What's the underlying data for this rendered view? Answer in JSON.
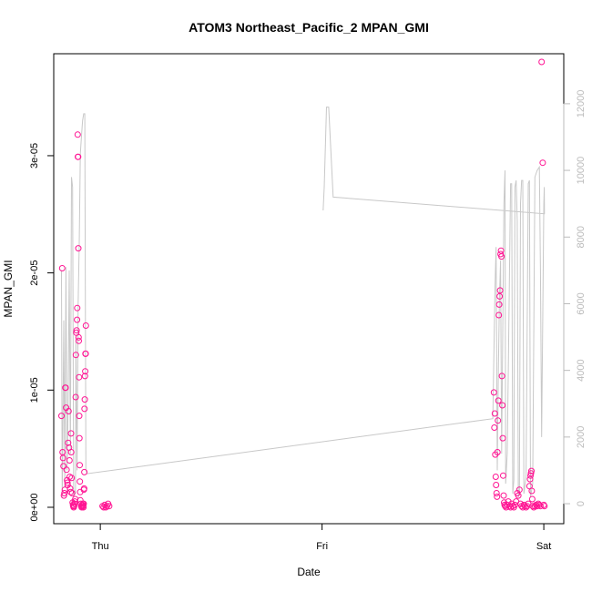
{
  "chart_data": {
    "type": "scatter",
    "title": "ATOM3 Northeast_Pacific_2 MPAN_GMI",
    "xlabel": "Date",
    "ylabel": "MPAN_GMI",
    "x_ticks": [
      "Thu",
      "Fri",
      "Sat"
    ],
    "x_tick_values": [
      0,
      1,
      2
    ],
    "xlim": [
      -0.21,
      2.09
    ],
    "ylim": [
      -1.4e-06,
      3.87e-05
    ],
    "y_ticks": [
      "0e+00",
      "1e-05",
      "2e-05",
      "3e-05"
    ],
    "y_tick_values": [
      0,
      1e-05,
      2e-05,
      3e-05
    ],
    "y2lim": [
      -600,
      13500
    ],
    "y2_ticks": [
      "0",
      "2000",
      "4000",
      "6000",
      "8000",
      "10000",
      "12000"
    ],
    "y2_tick_values": [
      0,
      2000,
      4000,
      6000,
      8000,
      10000,
      12000
    ],
    "colors": {
      "points": "#ff1493",
      "altitude": "#c8c8c8",
      "axis": "#000000",
      "right_axis": "#bbbbbb"
    },
    "series": [
      {
        "kind": "points",
        "points": [
          [
            -0.175,
            7.8e-06
          ],
          [
            -0.172,
            2.04e-05
          ],
          [
            -0.17,
            4.7e-06
          ],
          [
            -0.168,
            4.2e-06
          ],
          [
            -0.166,
            3.5e-06
          ],
          [
            -0.164,
            1e-06
          ],
          [
            -0.162,
            1.2e-06
          ],
          [
            -0.16,
            1.5e-06
          ],
          [
            -0.158,
            1.02e-05
          ],
          [
            -0.156,
            1.02e-05
          ],
          [
            -0.154,
            8.5e-06
          ],
          [
            -0.152,
            3.2e-06
          ],
          [
            -0.15,
            2.3e-06
          ],
          [
            -0.148,
            2.1e-06
          ],
          [
            -0.147,
            1.9e-06
          ],
          [
            -0.145,
            5.5e-06
          ],
          [
            -0.143,
            8.2e-06
          ],
          [
            -0.141,
            5.1e-06
          ],
          [
            -0.139,
            4e-06
          ],
          [
            -0.138,
            2.6e-06
          ],
          [
            -0.136,
            1.6e-06
          ],
          [
            -0.134,
            1.3e-06
          ],
          [
            -0.132,
            6.3e-06
          ],
          [
            -0.131,
            4.7e-06
          ],
          [
            -0.129,
            2.5e-06
          ],
          [
            -0.127,
            1.2e-06
          ],
          [
            -0.125,
            4e-07
          ],
          [
            -0.123,
            2e-07
          ],
          [
            -0.122,
            1e-07
          ],
          [
            -0.12,
            0.0
          ],
          [
            -0.118,
            1e-07
          ],
          [
            -0.116,
            3e-07
          ],
          [
            -0.115,
            5e-07
          ],
          [
            -0.113,
            7e-07
          ],
          [
            -0.111,
            9.4e-06
          ],
          [
            -0.11,
            1.3e-05
          ],
          [
            -0.108,
            1.49e-05
          ],
          [
            -0.107,
            1.51e-05
          ],
          [
            -0.105,
            1.6e-05
          ],
          [
            -0.104,
            1.7e-05
          ],
          [
            -0.102,
            3.18e-05
          ],
          [
            -0.101,
            2.99e-05
          ],
          [
            -0.1,
            2.99e-05
          ],
          [
            -0.099,
            2.21e-05
          ],
          [
            -0.098,
            1.45e-05
          ],
          [
            -0.097,
            1.42e-05
          ],
          [
            -0.096,
            1.11e-05
          ],
          [
            -0.095,
            7.8e-06
          ],
          [
            -0.094,
            5.9e-06
          ],
          [
            -0.093,
            3.6e-06
          ],
          [
            -0.092,
            2.2e-06
          ],
          [
            -0.091,
            1.3e-06
          ],
          [
            -0.09,
            6e-07
          ],
          [
            -0.088,
            3e-07
          ],
          [
            -0.086,
            1e-07
          ],
          [
            -0.084,
            0.0
          ],
          [
            -0.082,
            1e-07
          ],
          [
            -0.08,
            2e-07
          ],
          [
            -0.078,
            3e-07
          ],
          [
            -0.077,
            1e-07
          ],
          [
            -0.076,
            0.0
          ],
          [
            -0.075,
            3e-07
          ],
          [
            -0.074,
            1.5e-06
          ],
          [
            -0.073,
            1.6e-06
          ],
          [
            -0.072,
            3e-06
          ],
          [
            -0.071,
            8.4e-06
          ],
          [
            -0.07,
            9.2e-06
          ],
          [
            -0.069,
            1.12e-05
          ],
          [
            -0.068,
            1.16e-05
          ],
          [
            -0.067,
            1.31e-05
          ],
          [
            -0.066,
            1.31e-05
          ],
          [
            -0.065,
            1.55e-05
          ],
          [
            0.01,
            1e-07
          ],
          [
            0.015,
            0.0
          ],
          [
            0.02,
            2e-07
          ],
          [
            0.025,
            0.0
          ],
          [
            0.03,
            1e-07
          ],
          [
            0.035,
            3e-07
          ],
          [
            0.04,
            1e-07
          ],
          [
            1.775,
            9.8e-06
          ],
          [
            1.777,
            6.8e-06
          ],
          [
            1.779,
            8e-06
          ],
          [
            1.781,
            4.5e-06
          ],
          [
            1.783,
            2.6e-06
          ],
          [
            1.785,
            1.9e-06
          ],
          [
            1.787,
            1.2e-06
          ],
          [
            1.789,
            9e-07
          ],
          [
            1.791,
            4.7e-06
          ],
          [
            1.793,
            7.4e-06
          ],
          [
            1.795,
            9.1e-06
          ],
          [
            1.797,
            1.64e-05
          ],
          [
            1.799,
            1.73e-05
          ],
          [
            1.801,
            1.8e-05
          ],
          [
            1.803,
            1.85e-05
          ],
          [
            1.805,
            2.16e-05
          ],
          [
            1.807,
            2.19e-05
          ],
          [
            1.809,
            2.14e-05
          ],
          [
            1.811,
            1.12e-05
          ],
          [
            1.813,
            8.7e-06
          ],
          [
            1.815,
            5.9e-06
          ],
          [
            1.817,
            2.7e-06
          ],
          [
            1.819,
            1e-06
          ],
          [
            1.821,
            4e-07
          ],
          [
            1.823,
            2e-07
          ],
          [
            1.826,
            1e-07
          ],
          [
            1.83,
            0.0
          ],
          [
            1.835,
            2e-07
          ],
          [
            1.84,
            5e-07
          ],
          [
            1.845,
            1e-07
          ],
          [
            1.85,
            0.0
          ],
          [
            1.855,
            3e-07
          ],
          [
            1.86,
            1e-07
          ],
          [
            1.865,
            0.0
          ],
          [
            1.87,
            2e-07
          ],
          [
            1.875,
            5e-07
          ],
          [
            1.88,
            1.2e-06
          ],
          [
            1.885,
            1e-06
          ],
          [
            1.89,
            1.5e-06
          ],
          [
            1.895,
            3e-07
          ],
          [
            1.9,
            1e-07
          ],
          [
            1.905,
            0.0
          ],
          [
            1.91,
            2e-07
          ],
          [
            1.915,
            1e-07
          ],
          [
            1.92,
            0.0
          ],
          [
            1.925,
            1e-07
          ],
          [
            1.93,
            3e-07
          ],
          [
            1.935,
            1.8e-06
          ],
          [
            1.938,
            2.4e-06
          ],
          [
            1.94,
            2.7e-06
          ],
          [
            1.942,
            2.9e-06
          ],
          [
            1.944,
            3.1e-06
          ],
          [
            1.946,
            1.4e-06
          ],
          [
            1.948,
            7e-07
          ],
          [
            1.95,
            1e-07
          ],
          [
            1.955,
            0.0
          ],
          [
            1.96,
            1e-07
          ],
          [
            1.965,
            2e-07
          ],
          [
            1.97,
            1e-07
          ],
          [
            1.975,
            3e-07
          ],
          [
            1.98,
            2e-07
          ],
          [
            1.985,
            1e-07
          ],
          [
            1.99,
            3.8e-05
          ],
          [
            1.995,
            2.94e-05
          ],
          [
            2.0,
            2e-07
          ],
          [
            2.003,
            1e-07
          ]
        ]
      },
      {
        "kind": "altitude-line",
        "points": [
          [
            -0.175,
            7000
          ],
          [
            -0.172,
            200
          ],
          [
            -0.17,
            1000
          ],
          [
            -0.165,
            5500
          ],
          [
            -0.16,
            500
          ],
          [
            -0.158,
            3500
          ],
          [
            -0.155,
            7100
          ],
          [
            -0.15,
            1000
          ],
          [
            -0.145,
            3000
          ],
          [
            -0.14,
            7000
          ],
          [
            -0.135,
            1500
          ],
          [
            -0.13,
            9800
          ],
          [
            -0.125,
            9500
          ],
          [
            -0.12,
            200
          ],
          [
            -0.115,
            400
          ],
          [
            -0.112,
            300
          ],
          [
            -0.11,
            5000
          ],
          [
            -0.105,
            1000
          ],
          [
            -0.1,
            6000
          ],
          [
            -0.095,
            7800
          ],
          [
            -0.09,
            10500
          ],
          [
            -0.085,
            11000
          ],
          [
            -0.08,
            11500
          ],
          [
            -0.075,
            11700
          ],
          [
            -0.07,
            11700
          ],
          [
            -0.065,
            1000
          ],
          [
            -0.062,
            950
          ],
          [
            -0.06,
            900
          ],
          [
            1.77,
            2550
          ],
          [
            1.78,
            6500
          ],
          [
            1.785,
            7700
          ],
          [
            1.79,
            1000
          ],
          [
            1.795,
            4000
          ],
          [
            1.8,
            6200
          ],
          [
            1.805,
            7300
          ],
          [
            1.81,
            1500
          ],
          [
            1.82,
            9000
          ],
          [
            1.825,
            10000
          ],
          [
            1.828,
            600
          ],
          [
            1.835,
            1500
          ],
          [
            1.84,
            4000
          ],
          [
            1.85,
            9600
          ],
          [
            1.855,
            9600
          ],
          [
            1.86,
            300
          ],
          [
            1.865,
            700
          ],
          [
            1.87,
            9500
          ],
          [
            1.875,
            9700
          ],
          [
            1.88,
            8500
          ],
          [
            1.885,
            200
          ],
          [
            1.89,
            300
          ],
          [
            1.895,
            9000
          ],
          [
            1.9,
            9700
          ],
          [
            1.905,
            9700
          ],
          [
            1.91,
            300
          ],
          [
            1.92,
            800
          ],
          [
            1.93,
            9600
          ],
          [
            1.935,
            9700
          ],
          [
            1.94,
            200
          ],
          [
            1.95,
            600
          ],
          [
            1.96,
            9800
          ],
          [
            1.97,
            10000
          ],
          [
            1.98,
            10100
          ],
          [
            1.985,
            7000
          ],
          [
            1.99,
            2000
          ],
          [
            2.0,
            9000
          ],
          [
            2.002,
            9500
          ],
          [
            2.003,
            8700
          ],
          [
            1.05,
            9200
          ],
          [
            1.03,
            11900
          ],
          [
            1.02,
            11900
          ],
          [
            1.01,
            9500
          ],
          [
            1.005,
            8800
          ]
        ]
      }
    ]
  }
}
